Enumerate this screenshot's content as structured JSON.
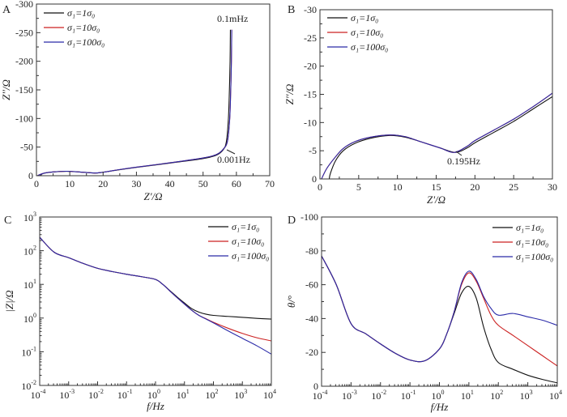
{
  "colors": {
    "s1": "#111111",
    "s10": "#cc2222",
    "s100": "#2a2aa8",
    "axis": "#333333"
  },
  "legend_labels": [
    "σ₁=1σ₀",
    "σ₁=10σ₀",
    "σ₁=100σ₀"
  ],
  "chart_data": [
    {
      "panel": "A",
      "type": "line",
      "xlabel": "Z'/Ω",
      "ylabel": "Z''/Ω",
      "xlim": [
        0,
        70
      ],
      "ylim": [
        0,
        -300
      ],
      "xticks": [
        0,
        10,
        20,
        30,
        40,
        50,
        60,
        70
      ],
      "yticks": [
        0,
        -50,
        -100,
        -150,
        -200,
        -250,
        -300
      ],
      "annotations": [
        "0.1mHz",
        "0.001Hz"
      ],
      "series": [
        {
          "name": "σ₁=1σ₀",
          "x": [
            1.2,
            2,
            5,
            9,
            13,
            17.5,
            20,
            25,
            30,
            40,
            50,
            54,
            56,
            57,
            57.6,
            57.9,
            58.1,
            58.2
          ],
          "y": [
            0,
            -4,
            -6.5,
            -7.7,
            -6.5,
            -4.7,
            -6,
            -10.5,
            -14.5,
            -22,
            -30,
            -36,
            -45,
            -60,
            -100,
            -150,
            -200,
            -255
          ]
        },
        {
          "name": "σ₁=10σ₀",
          "x": [
            0.3,
            2,
            5,
            9,
            13,
            17.3,
            20,
            25,
            30,
            40,
            50,
            54,
            56,
            57.3,
            58,
            58.3,
            58.5,
            58.6
          ],
          "y": [
            0,
            -4,
            -6.6,
            -7.8,
            -6.5,
            -4.7,
            -6.2,
            -10.8,
            -15,
            -22.5,
            -31,
            -37,
            -46,
            -60,
            -100,
            -150,
            -200,
            -255
          ]
        },
        {
          "name": "σ₁=100σ₀",
          "x": [
            0.3,
            2,
            5,
            9,
            13,
            17.3,
            20,
            25,
            30,
            40,
            50,
            54,
            56,
            57.3,
            58,
            58.3,
            58.5,
            58.6
          ],
          "y": [
            0,
            -4,
            -6.6,
            -7.8,
            -6.5,
            -4.7,
            -6.2,
            -10.8,
            -15,
            -22.5,
            -31,
            -37,
            -46,
            -60,
            -100,
            -150,
            -200,
            -255
          ]
        }
      ]
    },
    {
      "panel": "B",
      "type": "line",
      "xlabel": "Z'/Ω",
      "ylabel": "Z''/Ω",
      "xlim": [
        0,
        30
      ],
      "ylim": [
        0,
        -30
      ],
      "xticks": [
        0,
        5,
        10,
        15,
        20,
        25,
        30
      ],
      "yticks": [
        0,
        -5,
        -10,
        -15,
        -20,
        -25,
        -30
      ],
      "annotations": [
        "0.195Hz"
      ],
      "series": [
        {
          "name": "σ₁=1σ₀",
          "x": [
            1.2,
            1.35,
            2,
            3,
            4.5,
            6.5,
            9,
            11,
            13,
            15.5,
            17.5,
            19,
            20,
            22.5,
            25,
            27.5,
            30
          ],
          "y": [
            0,
            -1,
            -3.2,
            -5,
            -6.3,
            -7.2,
            -7.7,
            -7.4,
            -6.6,
            -5.5,
            -4.7,
            -5.5,
            -6.4,
            -8.3,
            -10.2,
            -12.4,
            -14.6
          ]
        },
        {
          "name": "σ₁=10σ₀",
          "x": [
            0.2,
            0.9,
            2,
            3,
            4.5,
            6.5,
            9,
            11,
            13,
            15.5,
            17.3,
            19,
            20,
            22.5,
            25,
            27.5,
            30
          ],
          "y": [
            0,
            -1.9,
            -3.9,
            -5.4,
            -6.6,
            -7.4,
            -7.8,
            -7.5,
            -6.6,
            -5.5,
            -4.7,
            -5.8,
            -6.8,
            -8.7,
            -10.6,
            -12.8,
            -15.2
          ]
        },
        {
          "name": "σ₁=100σ₀",
          "x": [
            0.2,
            0.9,
            2,
            3,
            4.5,
            6.5,
            9,
            11,
            13,
            15.5,
            17.3,
            19,
            20,
            22.5,
            25,
            27.5,
            30
          ],
          "y": [
            0,
            -1.9,
            -3.9,
            -5.4,
            -6.6,
            -7.4,
            -7.8,
            -7.5,
            -6.6,
            -5.5,
            -4.7,
            -5.8,
            -6.8,
            -8.7,
            -10.6,
            -12.8,
            -15.2
          ]
        }
      ]
    },
    {
      "panel": "C",
      "type": "line",
      "xlabel": "f/Hz",
      "ylabel": "|Z|/Ω",
      "xscale": "log",
      "yscale": "log",
      "xlim": [
        0.0001,
        10000
      ],
      "ylim": [
        0.01,
        1000
      ],
      "xtick_exponents": [
        -4,
        -3,
        -2,
        -1,
        0,
        1,
        2,
        3,
        4
      ],
      "ytick_exponents": [
        -2,
        -1,
        0,
        1,
        2,
        3
      ],
      "x": [
        0.0001,
        0.000316,
        0.001,
        0.00316,
        0.01,
        0.0316,
        0.1,
        0.316,
        1,
        1.78,
        3.16,
        5.62,
        10,
        17.8,
        31.6,
        56.2,
        100,
        316,
        1000,
        3162,
        10000
      ],
      "series": [
        {
          "name": "σ₁=1σ₀",
          "y": [
            250,
            90,
            62,
            42,
            30,
            24,
            20,
            17,
            14,
            10,
            6.5,
            4.2,
            2.8,
            1.9,
            1.5,
            1.3,
            1.2,
            1.12,
            1.05,
            0.98,
            0.93
          ]
        },
        {
          "name": "σ₁=10σ₀",
          "y": [
            250,
            90,
            62,
            42,
            30,
            24,
            20,
            17,
            14,
            10,
            6.3,
            4,
            2.6,
            1.7,
            1.2,
            0.95,
            0.75,
            0.5,
            0.35,
            0.26,
            0.21
          ]
        },
        {
          "name": "σ₁=100σ₀",
          "y": [
            250,
            90,
            62,
            42,
            30,
            24,
            20,
            17,
            14,
            10,
            6.3,
            4,
            2.6,
            1.7,
            1.2,
            0.93,
            0.72,
            0.42,
            0.25,
            0.15,
            0.085
          ]
        }
      ]
    },
    {
      "panel": "D",
      "type": "line",
      "xlabel": "f/Hz",
      "ylabel": "θ/°",
      "xscale": "log",
      "xlim": [
        0.0001,
        10000
      ],
      "ylim": [
        0,
        -100
      ],
      "xtick_exponents": [
        -4,
        -3,
        -2,
        -1,
        0,
        1,
        2,
        3,
        4
      ],
      "yticks": [
        0,
        -20,
        -40,
        -60,
        -80,
        -100
      ],
      "x": [
        0.0001,
        0.000316,
        0.001,
        0.00316,
        0.01,
        0.0316,
        0.1,
        0.316,
        1,
        1.78,
        3.16,
        5.62,
        10,
        17.8,
        31.6,
        56.2,
        100,
        316,
        1000,
        3162,
        10000
      ],
      "series": [
        {
          "name": "σ₁=1σ₀",
          "y": [
            -77,
            -60,
            -37,
            -31,
            -25,
            -19.5,
            -15.5,
            -15,
            -22,
            -31,
            -43,
            -55,
            -59,
            -52,
            -35,
            -22,
            -14,
            -10,
            -6.5,
            -4,
            -2
          ]
        },
        {
          "name": "σ₁=10σ₀",
          "y": [
            -77,
            -60,
            -37,
            -31,
            -25,
            -19.5,
            -15.5,
            -15,
            -22,
            -31,
            -44,
            -60,
            -67,
            -62,
            -52,
            -42,
            -36,
            -30,
            -24,
            -18,
            -12
          ]
        },
        {
          "name": "σ₁=100σ₀",
          "y": [
            -77,
            -60,
            -37,
            -31,
            -25,
            -19.5,
            -15.5,
            -15,
            -22,
            -31,
            -44,
            -61,
            -68,
            -63,
            -53,
            -46,
            -42,
            -43,
            -41,
            -39,
            -36
          ]
        }
      ]
    }
  ]
}
